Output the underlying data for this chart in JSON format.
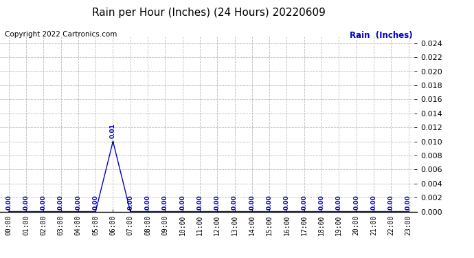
{
  "title": "Rain per Hour (Inches) (24 Hours) 20220609",
  "copyright_text": "Copyright 2022 Cartronics.com",
  "legend_label": "Rain  (Inches)",
  "x_labels": [
    "00:00",
    "01:00",
    "02:00",
    "03:00",
    "04:00",
    "05:00",
    "06:00",
    "07:00",
    "08:00",
    "09:00",
    "10:00",
    "11:00",
    "12:00",
    "13:00",
    "14:00",
    "15:00",
    "16:00",
    "17:00",
    "18:00",
    "19:00",
    "20:00",
    "21:00",
    "22:00",
    "23:00"
  ],
  "y_values": [
    0.0,
    0.0,
    0.0,
    0.0,
    0.0,
    0.0,
    0.01,
    0.0,
    0.0,
    0.0,
    0.0,
    0.0,
    0.0,
    0.0,
    0.0,
    0.0,
    0.0,
    0.0,
    0.0,
    0.0,
    0.0,
    0.0,
    0.0,
    0.0
  ],
  "line_color": "#0000CC",
  "marker_color": "#000000",
  "label_color": "#0000CC",
  "title_color": "#000000",
  "background_color": "#ffffff",
  "grid_color": "#bbbbbb",
  "ylim": [
    0.0,
    0.025
  ],
  "yticks": [
    0.0,
    0.002,
    0.004,
    0.006,
    0.008,
    0.01,
    0.012,
    0.014,
    0.016,
    0.018,
    0.02,
    0.022,
    0.024
  ],
  "annotation_fontsize": 6.5,
  "title_fontsize": 11,
  "copyright_fontsize": 7.5,
  "legend_fontsize": 8.5,
  "tick_fontsize": 7,
  "ytick_fontsize": 8
}
